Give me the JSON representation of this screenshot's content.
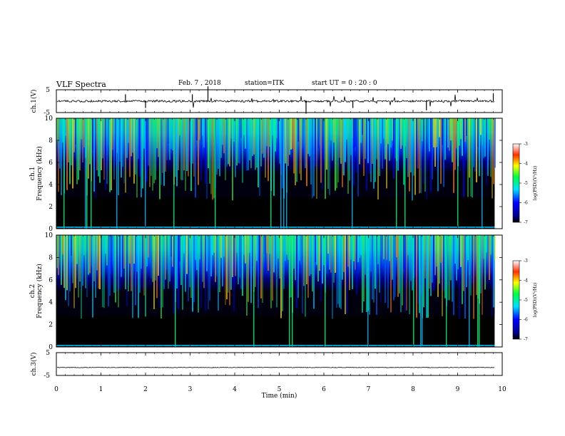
{
  "header": {
    "title": "VLF Spectra",
    "date": "Feb. 7 , 2018",
    "station": "station=ITK",
    "start": "start UT =  0 : 20 : 0"
  },
  "chart_data": [
    {
      "type": "line",
      "name": "waveform-ch1",
      "ylabel": "ch.1(V)",
      "ylim": [
        -5,
        5
      ],
      "yticks": [
        5,
        -5
      ],
      "xlim": [
        0,
        10
      ],
      "baseline": 0
    },
    {
      "type": "heatmap",
      "name": "spectrogram-ch1",
      "ylabel": "ch.1 Frequency (kHz)",
      "ylim": [
        0,
        10
      ],
      "yticks": [
        0,
        2,
        4,
        6,
        8,
        10
      ],
      "colorbar": {
        "label": "log(PSD)(V²/Hz)",
        "range": [
          -7,
          -3
        ],
        "ticks": [
          -3,
          -4,
          -5,
          -6,
          -7
        ]
      }
    },
    {
      "type": "heatmap",
      "name": "spectrogram-ch2",
      "ylabel": "ch.2 Frequency (kHz)",
      "ylim": [
        0,
        10
      ],
      "yticks": [
        0,
        2,
        4,
        6,
        8,
        10
      ],
      "colorbar": {
        "label": "log(PSD)(V²/Hz)",
        "range": [
          -7,
          -3
        ],
        "ticks": [
          -3,
          -4,
          -5,
          -6,
          -7
        ]
      }
    },
    {
      "type": "line",
      "name": "waveform-ch3",
      "ylabel": "ch.3(V)",
      "ylim": [
        -5,
        5
      ],
      "yticks": [
        5,
        -5
      ],
      "xlim": [
        0,
        10
      ],
      "baseline": -1.5
    }
  ],
  "xaxis": {
    "label": "Time (min)",
    "range": [
      0,
      10
    ],
    "ticks": [
      0,
      1,
      2,
      3,
      4,
      5,
      6,
      7,
      8,
      9,
      10
    ],
    "data_end": 9.83
  }
}
